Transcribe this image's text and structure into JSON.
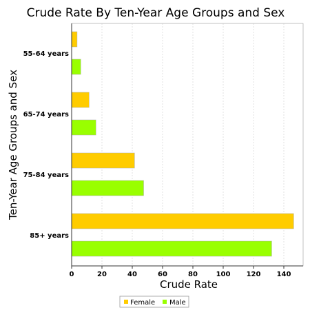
{
  "chart_data": {
    "type": "bar",
    "orientation": "horizontal",
    "title": "Crude Rate By Ten-Year Age Groups and Sex",
    "xlabel": "Crude Rate",
    "ylabel": "Ten-Year Age Groups and Sex",
    "categories": [
      "55-64 years",
      "65-74 years",
      "75-84 years",
      "85+ years"
    ],
    "series": [
      {
        "name": "Female",
        "color": "#FFCC00",
        "values": [
          3.6,
          11.5,
          41.5,
          146.5
        ]
      },
      {
        "name": "Male",
        "color": "#99FF00",
        "values": [
          6.0,
          16.0,
          47.5,
          132.0
        ]
      }
    ],
    "xlim": [
      0,
      150
    ],
    "xticks": [
      0,
      20,
      40,
      60,
      80,
      100,
      120,
      140
    ],
    "grid": true,
    "legend": "bottom"
  }
}
